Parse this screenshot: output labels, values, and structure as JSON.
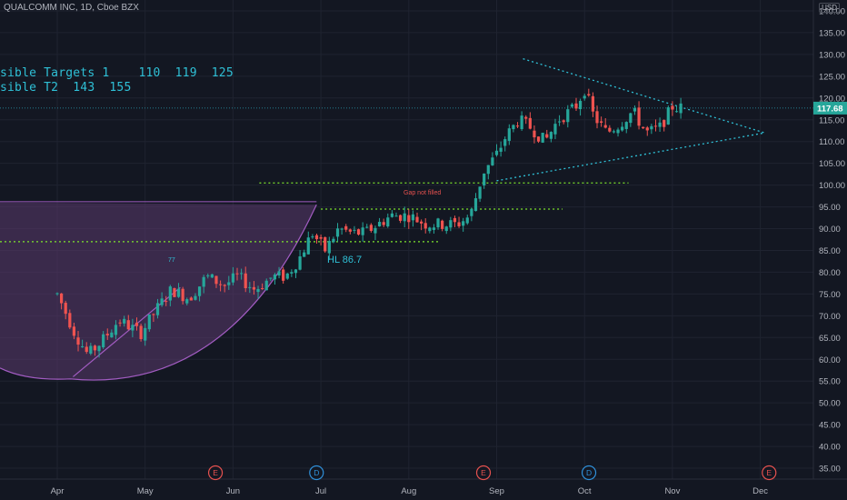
{
  "header": {
    "symbol_title": "QUALCOMM INC, 1D, Cboe BZX",
    "currency": "USD"
  },
  "annotations": {
    "targets_line1": "sible Targets 1    110  119  125",
    "targets_line2": "sible T2  143  155",
    "hl_label": "HL 86.7",
    "gap_label": "Gap not filled",
    "peak_label": "77"
  },
  "colors": {
    "background": "#131722",
    "up_candle": "#26a69a",
    "down_candle": "#ef5350",
    "trendline": "#2fc0d6",
    "support_line": "#7ee52d",
    "cup_fill": "#5b3a6e",
    "cup_edge": "#a25cc2",
    "price_badge": "#26a69a"
  },
  "chart_data": {
    "type": "candlestick",
    "y_axis": {
      "min": 32.5,
      "max": 142.5,
      "ticks": [
        "140.00",
        "135.00",
        "130.00",
        "125.00",
        "120.00",
        "115.00",
        "110.00",
        "105.00",
        "100.00",
        "95.00",
        "90.00",
        "85.00",
        "80.00",
        "75.00",
        "70.00",
        "65.00",
        "60.00",
        "55.00",
        "50.00",
        "45.00",
        "40.00",
        "35.00"
      ],
      "last_price": "117.68"
    },
    "x_axis": {
      "ticks": [
        "Apr",
        "May",
        "Jun",
        "Jul",
        "Aug",
        "Sep",
        "Oct",
        "Nov",
        "Dec"
      ]
    },
    "events": [
      {
        "label": "E",
        "month_pos": 1.8,
        "color": "#e5514f"
      },
      {
        "label": "D",
        "month_pos": 2.95,
        "color": "#2f8fd8"
      },
      {
        "label": "E",
        "month_pos": 4.85,
        "color": "#e5514f"
      },
      {
        "label": "D",
        "month_pos": 6.05,
        "color": "#2f8fd8"
      },
      {
        "label": "E",
        "month_pos": 8.1,
        "color": "#e5514f"
      }
    ],
    "price_path": [
      [
        0.0,
        75
      ],
      [
        0.2,
        66
      ],
      [
        0.35,
        61
      ],
      [
        0.5,
        64
      ],
      [
        0.7,
        69
      ],
      [
        0.95,
        66
      ],
      [
        1.15,
        72
      ],
      [
        1.3,
        76
      ],
      [
        1.5,
        74
      ],
      [
        1.7,
        79
      ],
      [
        1.9,
        77
      ],
      [
        2.05,
        79
      ],
      [
        2.25,
        76
      ],
      [
        2.45,
        79
      ],
      [
        2.6,
        79
      ],
      [
        2.75,
        83
      ],
      [
        2.9,
        89
      ],
      [
        3.05,
        85
      ],
      [
        3.2,
        90
      ],
      [
        3.35,
        89
      ],
      [
        3.5,
        89
      ],
      [
        3.65,
        91
      ],
      [
        3.8,
        93
      ],
      [
        4.0,
        93
      ],
      [
        4.2,
        91
      ],
      [
        4.4,
        91
      ],
      [
        4.55,
        91
      ],
      [
        4.7,
        93
      ],
      [
        4.85,
        103
      ],
      [
        5.0,
        107
      ],
      [
        5.1,
        111
      ],
      [
        5.25,
        115
      ],
      [
        5.4,
        113
      ],
      [
        5.55,
        110
      ],
      [
        5.7,
        115
      ],
      [
        5.9,
        118
      ],
      [
        6.0,
        122
      ],
      [
        6.1,
        116
      ],
      [
        6.25,
        112
      ],
      [
        6.4,
        114
      ],
      [
        6.55,
        117
      ],
      [
        6.7,
        112
      ],
      [
        6.85,
        113
      ],
      [
        7.0,
        118
      ],
      [
        7.1,
        117.68
      ]
    ],
    "lines": {
      "support_100": 100.5,
      "resistance_94": 94.5,
      "hl_line": 87,
      "last_price_line": 117.68
    },
    "triangle": {
      "upper_start": [
        5.3,
        129
      ],
      "apex": [
        8.05,
        112
      ],
      "lower_start": [
        5.0,
        101
      ]
    }
  }
}
